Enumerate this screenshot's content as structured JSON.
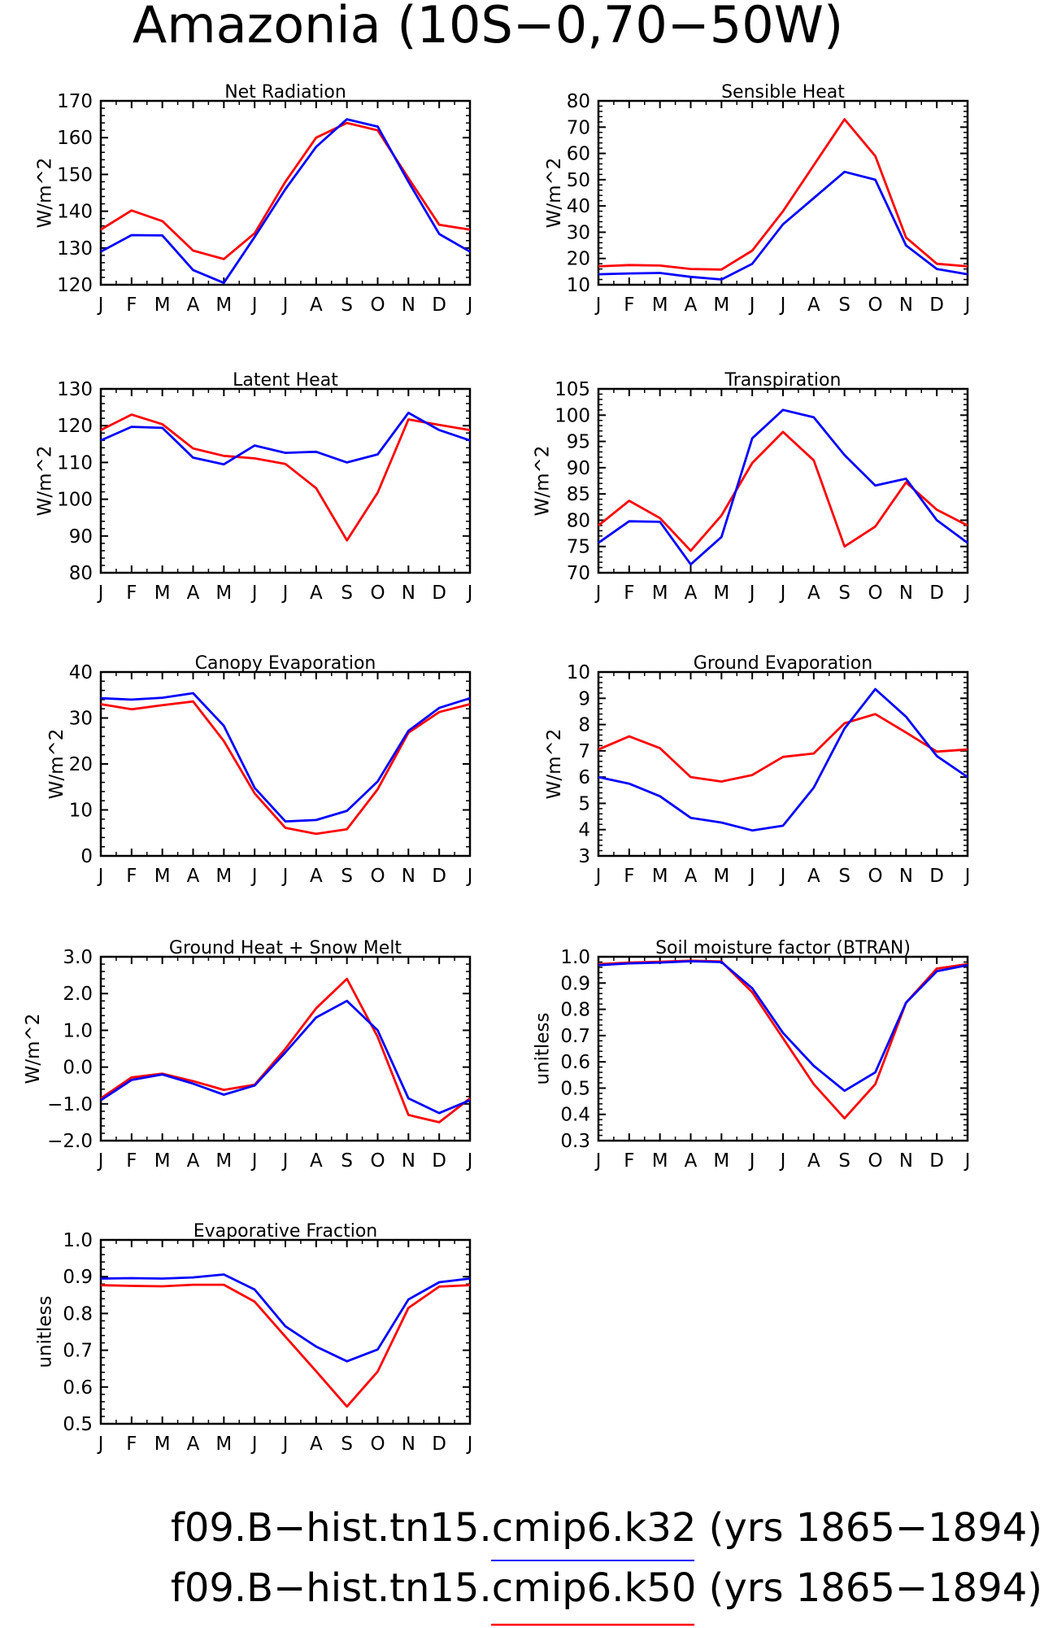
{
  "figure": {
    "title": "Amazonia (10S−0,70−50W)",
    "legend": [
      {
        "label": "f09.B−hist.tn15.cmip6.k32 (yrs 1865−1894)",
        "color": "#0000ff"
      },
      {
        "label": "f09.B−hist.tn15.cmip6.k50 (yrs 1865−1894)",
        "color": "#ff0000"
      }
    ]
  },
  "colors": {
    "k32": "#0000ff",
    "k50": "#ff0000",
    "axis": "#000000",
    "background": "#ffffff"
  },
  "chart_data": [
    {
      "type": "line",
      "title": "Net Radiation",
      "ylabel": "W/m^2",
      "categories": [
        "J",
        "F",
        "M",
        "A",
        "M",
        "J",
        "J",
        "A",
        "S",
        "O",
        "N",
        "D",
        "J"
      ],
      "ylim": [
        120,
        170
      ],
      "yticks": [
        120,
        130,
        140,
        150,
        160,
        170
      ],
      "ytick_labels": [
        "120",
        "130",
        "140",
        "150",
        "160",
        "170"
      ],
      "series": [
        {
          "name": "f09.B−hist.tn15.cmip6.k32",
          "color": "#0000ff",
          "values": [
            129,
            133.5,
            133.4,
            124,
            120.5,
            133,
            146,
            157.5,
            165,
            163,
            148,
            133.8,
            129
          ]
        },
        {
          "name": "f09.B−hist.tn15.cmip6.k50",
          "color": "#ff0000",
          "values": [
            135,
            140.2,
            137.3,
            129.3,
            127,
            134,
            148,
            160,
            164,
            162,
            149,
            136.3,
            135
          ]
        }
      ]
    },
    {
      "type": "line",
      "title": "Sensible Heat",
      "ylabel": "W/m^2",
      "categories": [
        "J",
        "F",
        "M",
        "A",
        "M",
        "J",
        "J",
        "A",
        "S",
        "O",
        "N",
        "D",
        "J"
      ],
      "ylim": [
        10,
        80
      ],
      "yticks": [
        10,
        20,
        30,
        40,
        50,
        60,
        70,
        80
      ],
      "ytick_labels": [
        "10",
        "20",
        "30",
        "40",
        "50",
        "60",
        "70",
        "80"
      ],
      "series": [
        {
          "name": "f09.B−hist.tn15.cmip6.k32",
          "color": "#0000ff",
          "values": [
            14,
            14.3,
            14.5,
            13,
            12,
            18,
            33,
            43,
            53,
            50,
            25,
            16,
            14
          ]
        },
        {
          "name": "f09.B−hist.tn15.cmip6.k50",
          "color": "#ff0000",
          "values": [
            17,
            17.5,
            17.3,
            16,
            15.8,
            23,
            38,
            55.5,
            73,
            59,
            28,
            18,
            17
          ]
        }
      ]
    },
    {
      "type": "line",
      "title": "Latent Heat",
      "ylabel": "W/m^2",
      "categories": [
        "J",
        "F",
        "M",
        "A",
        "M",
        "J",
        "J",
        "A",
        "S",
        "O",
        "N",
        "D",
        "J"
      ],
      "ylim": [
        80,
        130
      ],
      "yticks": [
        80,
        90,
        100,
        110,
        120,
        130
      ],
      "ytick_labels": [
        "80",
        "90",
        "100",
        "110",
        "120",
        "130"
      ],
      "series": [
        {
          "name": "f09.B−hist.tn15.cmip6.k32",
          "color": "#0000ff",
          "values": [
            116,
            119.7,
            119.4,
            111.3,
            109.5,
            114.6,
            112.6,
            112.9,
            110,
            112.2,
            123.5,
            118.8,
            116
          ]
        },
        {
          "name": "f09.B−hist.tn15.cmip6.k50",
          "color": "#ff0000",
          "values": [
            118.8,
            123,
            120.4,
            113.8,
            111.8,
            111.1,
            109.6,
            103,
            88.8,
            101.8,
            121.7,
            120.2,
            118.8
          ]
        }
      ]
    },
    {
      "type": "line",
      "title": "Transpiration",
      "ylabel": "W/m^2",
      "categories": [
        "J",
        "F",
        "M",
        "A",
        "M",
        "J",
        "J",
        "A",
        "S",
        "O",
        "N",
        "D",
        "J"
      ],
      "ylim": [
        70,
        105
      ],
      "yticks": [
        70,
        75,
        80,
        85,
        90,
        95,
        100,
        105
      ],
      "ytick_labels": [
        "70",
        "75",
        "80",
        "85",
        "90",
        "95",
        "100",
        "105"
      ],
      "series": [
        {
          "name": "f09.B−hist.tn15.cmip6.k32",
          "color": "#0000ff",
          "values": [
            75.7,
            79.8,
            79.7,
            71.6,
            76.8,
            95.6,
            101,
            99.6,
            92.4,
            86.6,
            87.9,
            80,
            75.7
          ]
        },
        {
          "name": "f09.B−hist.tn15.cmip6.k50",
          "color": "#ff0000",
          "values": [
            79,
            83.7,
            80.4,
            74.2,
            80.9,
            90.9,
            96.8,
            91.4,
            75,
            78.8,
            87.2,
            82,
            79
          ]
        }
      ]
    },
    {
      "type": "line",
      "title": "Canopy Evaporation",
      "ylabel": "W/m^2",
      "categories": [
        "J",
        "F",
        "M",
        "A",
        "M",
        "J",
        "J",
        "A",
        "S",
        "O",
        "N",
        "D",
        "J"
      ],
      "ylim": [
        0,
        40
      ],
      "yticks": [
        0,
        10,
        20,
        30,
        40
      ],
      "ytick_labels": [
        "0",
        "10",
        "20",
        "30",
        "40"
      ],
      "series": [
        {
          "name": "f09.B−hist.tn15.cmip6.k32",
          "color": "#0000ff",
          "values": [
            34.3,
            34,
            34.4,
            35.4,
            28.3,
            14.8,
            7.5,
            7.8,
            9.8,
            16.2,
            27.2,
            32.2,
            34.3
          ]
        },
        {
          "name": "f09.B−hist.tn15.cmip6.k50",
          "color": "#ff0000",
          "values": [
            33,
            31.9,
            32.8,
            33.6,
            25,
            13.6,
            6.1,
            4.8,
            5.8,
            14.5,
            26.8,
            31.3,
            33
          ]
        }
      ]
    },
    {
      "type": "line",
      "title": "Ground Evaporation",
      "ylabel": "W/m^2",
      "categories": [
        "J",
        "F",
        "M",
        "A",
        "M",
        "J",
        "J",
        "A",
        "S",
        "O",
        "N",
        "D",
        "J"
      ],
      "ylim": [
        3,
        10
      ],
      "yticks": [
        3,
        4,
        5,
        6,
        7,
        8,
        9,
        10
      ],
      "ytick_labels": [
        "3",
        "4",
        "5",
        "6",
        "7",
        "8",
        "9",
        "10"
      ],
      "series": [
        {
          "name": "f09.B−hist.tn15.cmip6.k32",
          "color": "#0000ff",
          "values": [
            6,
            5.75,
            5.27,
            4.45,
            4.27,
            3.97,
            4.15,
            5.6,
            7.85,
            9.35,
            8.3,
            6.8,
            6
          ]
        },
        {
          "name": "f09.B−hist.tn15.cmip6.k50",
          "color": "#ff0000",
          "values": [
            7.05,
            7.55,
            7.1,
            6,
            5.83,
            6.08,
            6.77,
            6.9,
            8.05,
            8.4,
            7.7,
            6.97,
            7.05
          ]
        }
      ]
    },
    {
      "type": "line",
      "title": "Ground Heat + Snow Melt",
      "ylabel": "W/m^2",
      "categories": [
        "J",
        "F",
        "M",
        "A",
        "M",
        "J",
        "J",
        "A",
        "S",
        "O",
        "N",
        "D",
        "J"
      ],
      "ylim": [
        -2,
        3
      ],
      "yticks": [
        -2,
        -1,
        0,
        1,
        2,
        3
      ],
      "ytick_labels": [
        "−2.0",
        "−1.0",
        "0.0",
        "1.0",
        "2.0",
        "3.0"
      ],
      "series": [
        {
          "name": "f09.B−hist.tn15.cmip6.k32",
          "color": "#0000ff",
          "values": [
            -0.9,
            -0.35,
            -0.2,
            -0.45,
            -0.75,
            -0.5,
            0.4,
            1.35,
            1.8,
            1,
            -0.85,
            -1.25,
            -0.9
          ]
        },
        {
          "name": "f09.B−hist.tn15.cmip6.k50",
          "color": "#ff0000",
          "values": [
            -0.85,
            -0.28,
            -0.18,
            -0.38,
            -0.62,
            -0.48,
            0.5,
            1.6,
            2.4,
            0.82,
            -1.3,
            -1.5,
            -0.85
          ]
        }
      ]
    },
    {
      "type": "line",
      "title": "Soil moisture factor (BTRAN)",
      "ylabel": "unitless",
      "categories": [
        "J",
        "F",
        "M",
        "A",
        "M",
        "J",
        "J",
        "A",
        "S",
        "O",
        "N",
        "D",
        "J"
      ],
      "ylim": [
        0.3,
        1.0
      ],
      "yticks": [
        0.3,
        0.4,
        0.5,
        0.6,
        0.7,
        0.8,
        0.9,
        1.0
      ],
      "ytick_labels": [
        "0.3",
        "0.4",
        "0.5",
        "0.6",
        "0.7",
        "0.8",
        "0.9",
        "1.0"
      ],
      "series": [
        {
          "name": "f09.B−hist.tn15.cmip6.k32",
          "color": "#0000ff",
          "values": [
            0.968,
            0.975,
            0.978,
            0.983,
            0.98,
            0.88,
            0.71,
            0.585,
            0.49,
            0.56,
            0.825,
            0.945,
            0.968
          ]
        },
        {
          "name": "f09.B−hist.tn15.cmip6.k50",
          "color": "#ff0000",
          "values": [
            0.972,
            0.978,
            0.981,
            0.985,
            0.982,
            0.865,
            0.69,
            0.515,
            0.385,
            0.515,
            0.825,
            0.955,
            0.972
          ]
        }
      ]
    },
    {
      "type": "line",
      "title": "Evaporative Fraction",
      "ylabel": "unitless",
      "categories": [
        "J",
        "F",
        "M",
        "A",
        "M",
        "J",
        "J",
        "A",
        "S",
        "O",
        "N",
        "D",
        "J"
      ],
      "ylim": [
        0.5,
        1.0
      ],
      "yticks": [
        0.5,
        0.6,
        0.7,
        0.8,
        0.9,
        1.0
      ],
      "ytick_labels": [
        "0.5",
        "0.6",
        "0.7",
        "0.8",
        "0.9",
        "1.0"
      ],
      "series": [
        {
          "name": "f09.B−hist.tn15.cmip6.k32",
          "color": "#0000ff",
          "values": [
            0.895,
            0.896,
            0.895,
            0.898,
            0.906,
            0.865,
            0.765,
            0.71,
            0.67,
            0.702,
            0.838,
            0.885,
            0.895
          ]
        },
        {
          "name": "f09.B−hist.tn15.cmip6.k50",
          "color": "#ff0000",
          "values": [
            0.877,
            0.875,
            0.874,
            0.878,
            0.878,
            0.832,
            0.737,
            0.643,
            0.547,
            0.642,
            0.815,
            0.873,
            0.877
          ]
        }
      ]
    }
  ]
}
